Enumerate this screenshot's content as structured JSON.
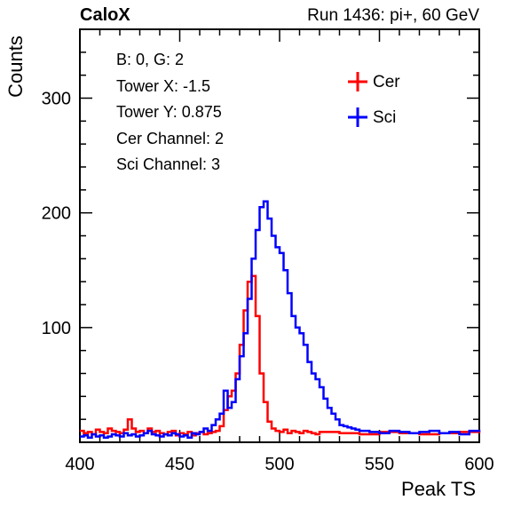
{
  "header": {
    "left_title": "CaloX",
    "right_title": "Run 1436: pi+, 60 GeV"
  },
  "info_box": {
    "lines": [
      "B: 0, G: 2",
      "Tower X: -1.5",
      "Tower Y: 0.875",
      "Cer Channel: 2",
      "Sci Channel: 3"
    ]
  },
  "chart_data": {
    "type": "line",
    "xlabel": "Peak TS",
    "ylabel": "Counts",
    "xlim": [
      400,
      600
    ],
    "ylim": [
      0,
      360
    ],
    "x_ticks": [
      400,
      450,
      500,
      550,
      600
    ],
    "y_ticks": [
      100,
      200,
      300
    ],
    "legend": {
      "placement": "top-right",
      "entries": [
        "Cer",
        "Sci"
      ]
    },
    "colors": {
      "Cer": "#ff0000",
      "Sci": "#0000ff"
    },
    "series": [
      {
        "name": "Cer",
        "x": [
          400,
          402,
          404,
          406,
          408,
          410,
          412,
          414,
          416,
          418,
          420,
          422,
          424,
          426,
          428,
          430,
          432,
          434,
          436,
          438,
          440,
          442,
          444,
          446,
          448,
          450,
          452,
          454,
          456,
          458,
          460,
          462,
          464,
          466,
          468,
          470,
          472,
          474,
          476,
          478,
          480,
          482,
          484,
          486,
          488,
          490,
          492,
          494,
          496,
          498,
          500,
          502,
          504,
          506,
          508,
          510,
          512,
          514,
          516,
          518,
          520,
          530,
          540,
          550,
          560,
          570,
          580,
          590,
          600
        ],
        "values": [
          10,
          8,
          9,
          7,
          11,
          9,
          8,
          12,
          10,
          9,
          8,
          11,
          20,
          12,
          9,
          10,
          8,
          12,
          9,
          10,
          8,
          7,
          9,
          10,
          6,
          8,
          7,
          9,
          6,
          8,
          9,
          7,
          8,
          9,
          10,
          14,
          28,
          40,
          45,
          60,
          85,
          115,
          140,
          145,
          110,
          60,
          35,
          18,
          12,
          10,
          9,
          11,
          8,
          10,
          9,
          8,
          10,
          9,
          8,
          7,
          9,
          8,
          7,
          9,
          8,
          7,
          8,
          9,
          8
        ]
      },
      {
        "name": "Sci",
        "x": [
          400,
          402,
          404,
          406,
          408,
          410,
          412,
          414,
          416,
          418,
          420,
          422,
          424,
          426,
          428,
          430,
          432,
          434,
          436,
          438,
          440,
          442,
          444,
          446,
          448,
          450,
          452,
          454,
          456,
          458,
          460,
          462,
          464,
          466,
          468,
          470,
          472,
          474,
          476,
          478,
          480,
          482,
          484,
          486,
          488,
          490,
          492,
          494,
          496,
          498,
          500,
          502,
          504,
          506,
          508,
          510,
          512,
          514,
          516,
          518,
          520,
          522,
          524,
          526,
          528,
          530,
          532,
          534,
          536,
          538,
          540,
          545,
          550,
          555,
          560,
          565,
          570,
          575,
          580,
          585,
          590,
          595,
          600
        ],
        "values": [
          5,
          6,
          4,
          7,
          5,
          6,
          4,
          5,
          7,
          6,
          5,
          8,
          6,
          7,
          5,
          6,
          8,
          10,
          7,
          6,
          5,
          7,
          6,
          8,
          7,
          5,
          6,
          4,
          8,
          7,
          9,
          12,
          10,
          15,
          20,
          25,
          45,
          30,
          35,
          55,
          75,
          95,
          125,
          160,
          185,
          205,
          210,
          195,
          180,
          170,
          165,
          150,
          130,
          110,
          100,
          95,
          85,
          70,
          60,
          55,
          48,
          38,
          30,
          25,
          20,
          15,
          14,
          13,
          12,
          11,
          10,
          9,
          8,
          10,
          9,
          8,
          9,
          10,
          8,
          9,
          7,
          10,
          9
        ]
      }
    ]
  }
}
